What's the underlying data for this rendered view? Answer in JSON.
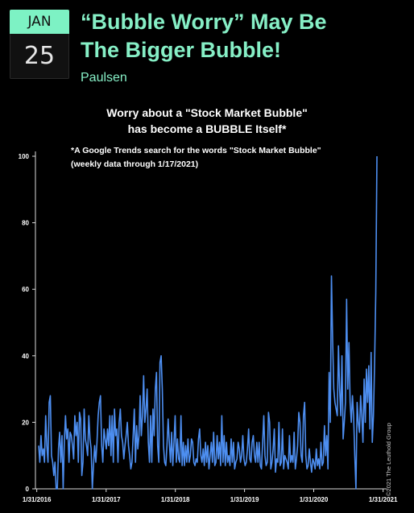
{
  "badge": {
    "month": "JAN",
    "day": "25"
  },
  "headline": {
    "line1": "“Bubble Worry” May Be",
    "line2": "The Bigger Bubble!"
  },
  "author": "Paulsen",
  "chart_data": {
    "type": "line",
    "title_line1": "Worry about a \"Stock Market Bubble\"",
    "title_line2": "has become a BUBBLE Itself*",
    "subtitle_line1": "*A Google Trends search for the words \"Stock Market Bubble\"",
    "subtitle_line2": "(weekly data through 1/17/2021)",
    "credit": "©2021 The Leuthold Group",
    "xlabel": "",
    "ylabel": "",
    "ylim": [
      0,
      100
    ],
    "yticks": [
      0,
      20,
      40,
      60,
      80,
      100
    ],
    "xlim": [
      "2016-01-24",
      "2021-01-24"
    ],
    "xticks": [
      {
        "date": "2016-01-31",
        "label": "1/31/2016"
      },
      {
        "date": "2017-01-31",
        "label": "1/31/2017"
      },
      {
        "date": "2018-01-31",
        "label": "1/31/2018"
      },
      {
        "date": "2019-01-31",
        "label": "1/31/2019"
      },
      {
        "date": "2020-01-31",
        "label": "1/31/2020"
      },
      {
        "date": "2021-01-31",
        "label": "1/31/2021"
      }
    ],
    "color": "#4d8ef0",
    "series": [
      {
        "values": [
          13,
          8,
          16,
          10,
          12,
          8,
          22,
          13,
          8,
          26,
          28,
          10,
          8,
          4,
          8,
          0,
          0,
          12,
          17,
          8,
          16,
          0,
          14,
          22,
          15,
          18,
          8,
          17,
          16,
          13,
          9,
          22,
          16,
          20,
          8,
          23,
          21,
          4,
          8,
          24,
          15,
          13,
          10,
          22,
          15,
          12,
          0,
          7,
          13,
          8,
          14,
          22,
          26,
          28,
          13,
          8,
          18,
          15,
          12,
          18,
          13,
          22,
          10,
          22,
          8,
          24,
          16,
          18,
          8,
          20,
          24,
          16,
          14,
          9,
          13,
          16,
          20,
          13,
          10,
          6,
          8,
          16,
          24,
          8,
          19,
          12,
          16,
          28,
          16,
          22,
          34,
          20,
          24,
          30,
          14,
          8,
          22,
          8,
          24,
          16,
          30,
          35,
          13,
          8,
          38,
          40,
          30,
          13,
          8,
          7,
          13,
          21,
          14,
          8,
          17,
          7,
          14,
          22,
          8,
          15,
          9,
          8,
          22,
          7,
          14,
          7,
          13,
          8,
          15,
          8,
          10,
          15,
          14,
          8,
          7,
          9,
          8,
          15,
          18,
          10,
          8,
          12,
          7,
          14,
          8,
          13,
          6,
          10,
          14,
          8,
          17,
          7,
          8,
          16,
          9,
          14,
          7,
          22,
          8,
          16,
          7,
          14,
          8,
          10,
          7,
          15,
          8,
          14,
          6,
          8,
          9,
          14,
          12,
          8,
          10,
          16,
          9,
          7,
          8,
          12,
          18,
          9,
          8,
          14,
          16,
          10,
          8,
          14,
          8,
          14,
          7,
          6,
          14,
          22,
          10,
          7,
          8,
          23,
          20,
          6,
          8,
          12,
          18,
          5,
          9,
          8,
          20,
          7,
          8,
          18,
          6,
          10,
          9,
          8,
          6,
          16,
          8,
          10,
          8,
          17,
          6,
          9,
          13,
          23,
          20,
          10,
          8,
          22,
          26,
          10,
          6,
          7,
          12,
          8,
          5,
          9,
          8,
          6,
          12,
          7,
          9,
          6,
          14,
          7,
          8,
          19,
          10,
          16,
          6,
          35,
          20,
          64,
          45,
          30,
          26,
          24,
          22,
          43,
          30,
          22,
          40,
          15,
          20,
          26,
          57,
          30,
          44,
          26,
          20,
          28,
          22,
          10,
          0,
          26,
          20,
          17,
          28,
          22,
          14,
          33,
          20,
          36,
          26,
          37,
          18,
          41,
          14,
          22,
          38,
          59,
          100
        ]
      }
    ]
  }
}
